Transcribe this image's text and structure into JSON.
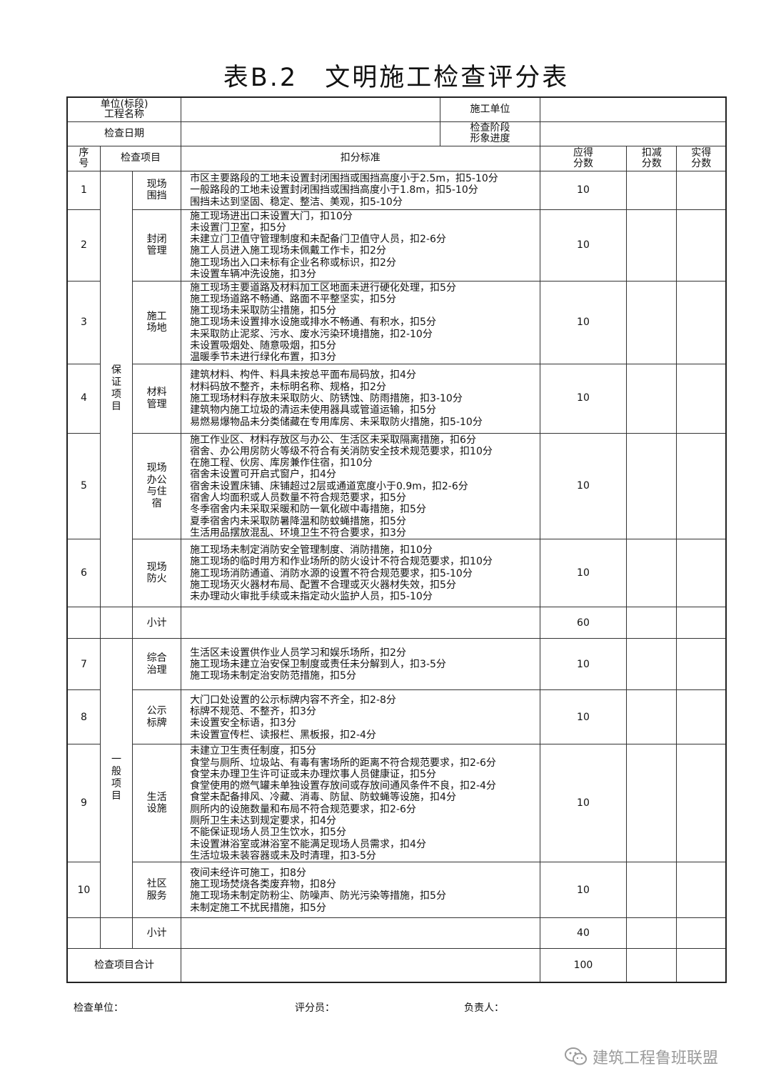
{
  "title": "表B.2　文明施工检查评分表",
  "header": {
    "project_label": "单位(标段)\n工程名称",
    "contractor_label": "施工单位",
    "date_label": "检查日期",
    "stage_label": "检查阶段\n形象进度"
  },
  "columns": {
    "no": "序号",
    "item": "检查项目",
    "criteria": "扣分标准",
    "due": "应得分数",
    "deduct": "扣减分数",
    "actual": "实得分数"
  },
  "groups": [
    {
      "name": "保证项目",
      "subtotal_label": "小计",
      "subtotal": "60",
      "rows": [
        {
          "no": "1",
          "item": "现场围挡",
          "due": "10",
          "criteria": [
            "市区主要路段的工地未设置封闭围挡或围挡高度小于2.5m，扣5-10分",
            "一般路段的工地未设置封闭围挡或围挡高度小于1.8m，扣5-10分",
            "围挡未达到坚固、稳定、整洁、美观，扣5-10分"
          ]
        },
        {
          "no": "2",
          "item": "封闭管理",
          "due": "10",
          "criteria": [
            "施工现场进出口未设置大门，扣10分",
            "未设置门卫室，扣5分",
            "未建立门卫值守管理制度和未配备门卫值守人员，扣2-6分",
            "施工人员进入施工现场未佩戴工作卡，扣2分",
            "施工现场出入口未标有企业名称或标识，扣2分",
            "未设置车辆冲洗设施，扣3分"
          ]
        },
        {
          "no": "3",
          "item": "施工场地",
          "due": "10",
          "criteria": [
            "施工现场主要道路及材料加工区地面未进行硬化处理，扣5分",
            "施工现场道路不畅通、路面不平整坚实，扣5分",
            "施工现场未采取防尘措施，扣5分",
            "施工现场未设置排水设施或排水不畅通、有积水，扣5分",
            "未采取防止泥浆、污水、废水污染环境措施，扣2-10分",
            "未设置吸烟处、随意吸烟，扣5分",
            "温暖季节未进行绿化布置，扣3分"
          ]
        },
        {
          "no": "4",
          "item": "材料管理",
          "due": "10",
          "criteria": [
            "建筑材料、构件、料具未按总平面布局码放，扣4分",
            "材料码放不整齐，未标明名称、规格，扣2分",
            "施工现场材料存放未采取防火、防锈蚀、防雨措施，扣3-10分",
            "建筑物内施工垃圾的清运未使用器具或管道运输，扣5分",
            "易燃易爆物品未分类储藏在专用库房、未采取防火措施，扣5-10分"
          ]
        },
        {
          "no": "5",
          "item": "现场办公与住宿",
          "due": "10",
          "criteria": [
            "施工作业区、材料存放区与办公、生活区未采取隔离措施，扣6分",
            "宿舍、办公用房防火等级不符合有关消防安全技术规范要求，扣10分",
            "在施工程、伙房、库房兼作住宿，扣10分",
            "宿舍未设置可开启式窗户，扣4分",
            "宿舍未设置床铺、床铺超过2层或通道宽度小于0.9m，扣2-6分",
            "宿舍人均面积或人员数量不符合规范要求，扣5分",
            "冬季宿舍内未采取采暖和防一氧化碳中毒措施，扣5分",
            "夏季宿舍内未采取防暑降温和防蚊蝇措施，扣5分",
            "生活用品摆放混乱、环境卫生不符合要求，扣3分"
          ]
        },
        {
          "no": "6",
          "item": "现场防火",
          "due": "10",
          "criteria": [
            "施工现场未制定消防安全管理制度、消防措施，扣10分",
            "施工现场的临时用方和作业场所的防火设计不符合规范要求，扣10分",
            "施工现场消防通道、消防水源的设置不符合规范要求，扣5-10分",
            "施工现场灭火器材布局、配置不合理或灭火器材失效，扣5分",
            "未办理动火审批手续或未指定动火监护人员，扣5-10分"
          ]
        }
      ]
    },
    {
      "name": "一般项目",
      "subtotal_label": "小计",
      "subtotal": "40",
      "rows": [
        {
          "no": "7",
          "item": "综合治理",
          "due": "10",
          "criteria": [
            "生活区未设置供作业人员学习和娱乐场所，扣2分",
            "施工现场未建立治安保卫制度或责任未分解到人，扣3-5分",
            "施工现场未制定治安防范措施，扣5分"
          ]
        },
        {
          "no": "8",
          "item": "公示标牌",
          "due": "10",
          "criteria": [
            "大门口处设置的公示标牌内容不齐全，扣2-8分",
            "标牌不规范、不整齐，扣3分",
            "未设置安全标语，扣3分",
            "未设置宣传栏、读报栏、黑板报，扣2-4分"
          ]
        },
        {
          "no": "9",
          "item": "生活设施",
          "due": "10",
          "criteria": [
            "未建立卫生责任制度，扣5分",
            "食堂与厕所、垃圾站、有毒有害场所的距离不符合规范要求，扣2-6分",
            "食堂未办理卫生许可证或未办理炊事人员健康证，扣5分",
            "食堂使用的燃气罐未单独设置存放间或存放间通风条件不良，扣2-4分",
            "食堂未配备排风、冷藏、消毒、防鼠、防蚊蝇等设施，扣4分",
            "厕所内的设施数量和布局不符合规范要求，扣2-6分",
            "厕所卫生未达到规定要求，扣4分",
            "不能保证现场人员卫生饮水，扣5分",
            "未设置淋浴室或淋浴室不能满足现场人员需求，扣4分",
            "生活垃圾未装容器或未及时清理，扣3-5分"
          ]
        },
        {
          "no": "10",
          "item": "社区服务",
          "due": "10",
          "criteria": [
            "夜间未经许可施工，扣8分",
            "施工现场焚烧各类废弃物，扣8分",
            "施工现场未制定防粉尘、防噪声、防光污染等措施，扣5分",
            "未制定施工不扰民措施，扣5分"
          ]
        }
      ]
    }
  ],
  "total": {
    "label": "检查项目合计",
    "due": "100"
  },
  "footer": {
    "inspector_unit": "检查单位：",
    "scorer": "评分员：",
    "responsible": "负责人："
  },
  "watermark": {
    "text": "建筑工程鲁班联盟",
    "icon": "wechat-icon"
  }
}
